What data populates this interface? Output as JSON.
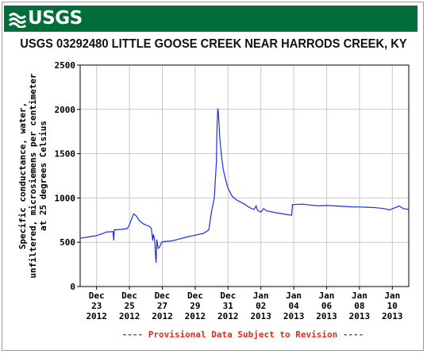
{
  "header": {
    "logo_text": "USGS",
    "title": "USGS 03292480 LITTLE GOOSE CREEK NEAR HARRODS CREEK, KY"
  },
  "chart_data": {
    "type": "line",
    "title": "USGS 03292480 LITTLE GOOSE CREEK NEAR HARRODS CREEK, KY",
    "ylabel_lines": [
      "Specific conductance, water,",
      "unfiltered, microsiemens per centimeter",
      "at 25 degrees Celsius"
    ],
    "xlabel": "",
    "footer": "---- Provisional Data Subject to Revision ----",
    "ylim": [
      0,
      2500
    ],
    "y_ticks": [
      {
        "value": 0,
        "label": "0"
      },
      {
        "value": 500,
        "label": "500"
      },
      {
        "value": 1000,
        "label": "1000"
      },
      {
        "value": 1500,
        "label": "1500"
      },
      {
        "value": 2000,
        "label": "2000"
      },
      {
        "value": 2500,
        "label": "2500"
      }
    ],
    "xlim": [
      "2012-12-22",
      "2013-01-11"
    ],
    "x_ticks": [
      {
        "date": "2012-12-23",
        "label": [
          "Dec",
          "23",
          "2012"
        ]
      },
      {
        "date": "2012-12-25",
        "label": [
          "Dec",
          "25",
          "2012"
        ]
      },
      {
        "date": "2012-12-27",
        "label": [
          "Dec",
          "27",
          "2012"
        ]
      },
      {
        "date": "2012-12-29",
        "label": [
          "Dec",
          "29",
          "2012"
        ]
      },
      {
        "date": "2012-12-31",
        "label": [
          "Dec",
          "31",
          "2012"
        ]
      },
      {
        "date": "2013-01-02",
        "label": [
          "Jan",
          "02",
          "2013"
        ]
      },
      {
        "date": "2013-01-04",
        "label": [
          "Jan",
          "04",
          "2013"
        ]
      },
      {
        "date": "2013-01-06",
        "label": [
          "Jan",
          "06",
          "2013"
        ]
      },
      {
        "date": "2013-01-08",
        "label": [
          "Jan",
          "08",
          "2013"
        ]
      },
      {
        "date": "2013-01-10",
        "label": [
          "Jan",
          "10",
          "2013"
        ]
      }
    ],
    "grid": true,
    "series": [
      {
        "color": "#1a2ee8",
        "points": [
          [
            "2012-12-22T00:00",
            545
          ],
          [
            "2012-12-22T12:00",
            560
          ],
          [
            "2012-12-23T00:00",
            575
          ],
          [
            "2012-12-23T10:00",
            600
          ],
          [
            "2012-12-23T14:00",
            615
          ],
          [
            "2012-12-24T00:00",
            620
          ],
          [
            "2012-12-24T01:00",
            520
          ],
          [
            "2012-12-24T02:00",
            640
          ],
          [
            "2012-12-24T12:00",
            645
          ],
          [
            "2012-12-24T21:00",
            655
          ],
          [
            "2012-12-25T00:00",
            700
          ],
          [
            "2012-12-25T03:00",
            760
          ],
          [
            "2012-12-25T06:00",
            820
          ],
          [
            "2012-12-25T09:00",
            805
          ],
          [
            "2012-12-25T15:00",
            740
          ],
          [
            "2012-12-25T21:00",
            705
          ],
          [
            "2012-12-26T05:00",
            680
          ],
          [
            "2012-12-26T08:00",
            655
          ],
          [
            "2012-12-26T10:00",
            520
          ],
          [
            "2012-12-26T11:00",
            590
          ],
          [
            "2012-12-26T13:00",
            520
          ],
          [
            "2012-12-26T14:00",
            350
          ],
          [
            "2012-12-26T15:00",
            270
          ],
          [
            "2012-12-26T16:00",
            530
          ],
          [
            "2012-12-26T17:00",
            475
          ],
          [
            "2012-12-26T18:00",
            430
          ],
          [
            "2012-12-26T20:00",
            445
          ],
          [
            "2012-12-26T22:00",
            485
          ],
          [
            "2012-12-27T00:00",
            505
          ],
          [
            "2012-12-27T05:00",
            510
          ],
          [
            "2012-12-27T14:00",
            515
          ],
          [
            "2012-12-28T00:00",
            535
          ],
          [
            "2012-12-28T12:00",
            560
          ],
          [
            "2012-12-29T00:00",
            580
          ],
          [
            "2012-12-29T12:00",
            600
          ],
          [
            "2012-12-29T20:00",
            640
          ],
          [
            "2012-12-30T00:00",
            850
          ],
          [
            "2012-12-30T04:00",
            1000
          ],
          [
            "2012-12-30T07:00",
            1400
          ],
          [
            "2012-12-30T08:00",
            1820
          ],
          [
            "2012-12-30T09:00",
            2010
          ],
          [
            "2012-12-30T10:00",
            1960
          ],
          [
            "2012-12-30T12:00",
            1680
          ],
          [
            "2012-12-30T14:00",
            1500
          ],
          [
            "2012-12-30T17:00",
            1320
          ],
          [
            "2012-12-30T20:00",
            1220
          ],
          [
            "2012-12-31T00:00",
            1110
          ],
          [
            "2012-12-31T06:00",
            1020
          ],
          [
            "2012-12-31T12:00",
            980
          ],
          [
            "2013-01-01T00:00",
            930
          ],
          [
            "2013-01-01T08:00",
            890
          ],
          [
            "2013-01-01T14:00",
            870
          ],
          [
            "2013-01-01T17:00",
            910
          ],
          [
            "2013-01-01T19:00",
            860
          ],
          [
            "2013-01-02T00:00",
            840
          ],
          [
            "2013-01-02T04:00",
            880
          ],
          [
            "2013-01-02T08:00",
            855
          ],
          [
            "2013-01-02T14:00",
            845
          ],
          [
            "2013-01-03T00:00",
            830
          ],
          [
            "2013-01-03T12:00",
            815
          ],
          [
            "2013-01-03T21:00",
            805
          ],
          [
            "2013-01-03T22:00",
            925
          ],
          [
            "2013-01-04T12:00",
            930
          ],
          [
            "2013-01-05T00:00",
            920
          ],
          [
            "2013-01-05T12:00",
            910
          ],
          [
            "2013-01-06T00:00",
            915
          ],
          [
            "2013-01-06T12:00",
            910
          ],
          [
            "2013-01-07T00:00",
            905
          ],
          [
            "2013-01-07T12:00",
            900
          ],
          [
            "2013-01-08T00:00",
            898
          ],
          [
            "2013-01-08T12:00",
            895
          ],
          [
            "2013-01-09T00:00",
            890
          ],
          [
            "2013-01-09T12:00",
            880
          ],
          [
            "2013-01-09T20:00",
            865
          ],
          [
            "2013-01-10T04:00",
            890
          ],
          [
            "2013-01-10T10:00",
            910
          ],
          [
            "2013-01-10T16:00",
            880
          ],
          [
            "2013-01-11T00:00",
            870
          ]
        ]
      }
    ]
  }
}
